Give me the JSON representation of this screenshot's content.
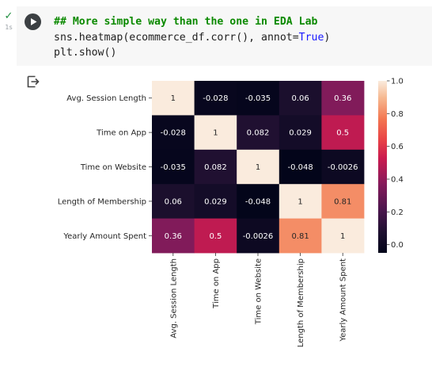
{
  "cell": {
    "exec_time": "1s",
    "code": {
      "comment": "## More simple way than the one in EDA Lab",
      "line2_prefix": "sns.heatmap(ecommerce_df.corr(), annot=",
      "line2_keyword": "True",
      "line2_suffix": ")",
      "line3": "plt.show()"
    }
  },
  "icons": {
    "status": "check-icon",
    "run": "play-icon",
    "output": "output-arrow-icon"
  },
  "chart_data": {
    "type": "heatmap",
    "title": "",
    "xlabel": "",
    "ylabel": "",
    "rows": [
      "Avg. Session Length",
      "Time on App",
      "Time on Website",
      "Length of Membership",
      "Yearly Amount Spent"
    ],
    "columns": [
      "Avg. Session Length",
      "Time on App",
      "Time on Website",
      "Length of Membership",
      "Yearly Amount Spent"
    ],
    "values": [
      [
        1,
        -0.028,
        -0.035,
        0.06,
        0.36
      ],
      [
        -0.028,
        1,
        0.082,
        0.029,
        0.5
      ],
      [
        -0.035,
        0.082,
        1,
        -0.048,
        -0.0026
      ],
      [
        0.06,
        0.029,
        -0.048,
        1,
        0.81
      ],
      [
        0.36,
        0.5,
        -0.0026,
        0.81,
        1
      ]
    ],
    "annotations": [
      [
        "1",
        "-0.028",
        "-0.035",
        "0.06",
        "0.36"
      ],
      [
        "-0.028",
        "1",
        "0.082",
        "0.029",
        "0.5"
      ],
      [
        "-0.035",
        "0.082",
        "1",
        "-0.048",
        "-0.0026"
      ],
      [
        "0.06",
        "0.029",
        "-0.048",
        "1",
        "0.81"
      ],
      [
        "0.36",
        "0.5",
        "-0.0026",
        "0.81",
        "1"
      ]
    ],
    "colorbar": {
      "range": [
        -0.05,
        1.0
      ],
      "ticks": [
        "0.0",
        "0.2",
        "0.4",
        "0.6",
        "0.8",
        "1.0"
      ],
      "colormap": "rocket"
    }
  }
}
